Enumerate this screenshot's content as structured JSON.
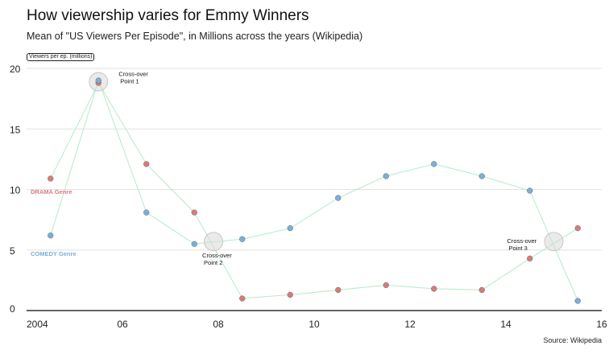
{
  "chart_data": {
    "type": "scatter",
    "title": "How viewership varies for Emmy Winners",
    "subtitle": "Mean of \"US Viewers Per Episode\", in Millions across the years (Wikipedia)",
    "ylabel": "Viewers per ep. (millions)",
    "source": "Source: Wikipedia",
    "xlim": [
      2004,
      2016
    ],
    "ylim": [
      0,
      20
    ],
    "x_ticks": [
      {
        "value": 2004,
        "label": "2004"
      },
      {
        "value": 2006,
        "label": "06"
      },
      {
        "value": 2008,
        "label": "08"
      },
      {
        "value": 2010,
        "label": "10"
      },
      {
        "value": 2012,
        "label": "12"
      },
      {
        "value": 2014,
        "label": "14"
      },
      {
        "value": 2016,
        "label": "16"
      }
    ],
    "y_ticks": [
      0,
      5,
      10,
      15,
      20
    ],
    "grid": true,
    "series": [
      {
        "name": "DRAMA Genre",
        "color": "#d97b7b",
        "x": [
          2004.5,
          2005.5,
          2006.5,
          2007.5,
          2008.5,
          2009.5,
          2010.5,
          2011.5,
          2012.5,
          2013.5,
          2014.5,
          2015.5
        ],
        "y": [
          10.9,
          18.8,
          12.1,
          8.1,
          1.0,
          1.3,
          1.7,
          2.1,
          1.8,
          1.7,
          4.3,
          6.8
        ]
      },
      {
        "name": "COMEDY Genre",
        "color": "#7bafd9",
        "x": [
          2004.5,
          2005.5,
          2006.5,
          2007.5,
          2008.5,
          2009.5,
          2010.5,
          2011.5,
          2012.5,
          2013.5,
          2014.5,
          2015.5
        ],
        "y": [
          6.2,
          19.0,
          8.1,
          5.5,
          5.9,
          6.8,
          9.3,
          11.1,
          12.1,
          11.1,
          9.9,
          0.8
        ]
      }
    ],
    "line_color": "#b4ecc8",
    "crossovers": [
      {
        "x": 2005.5,
        "y": 18.9,
        "label_line1": "Cross-over",
        "label_line2": "Point 1"
      },
      {
        "x": 2007.9,
        "y": 5.7,
        "label_line1": "Cross-over",
        "label_line2": "Point 2"
      },
      {
        "x": 2015.0,
        "y": 5.7,
        "label_line1": "Cross-over",
        "label_line2": "Point 3"
      }
    ]
  }
}
